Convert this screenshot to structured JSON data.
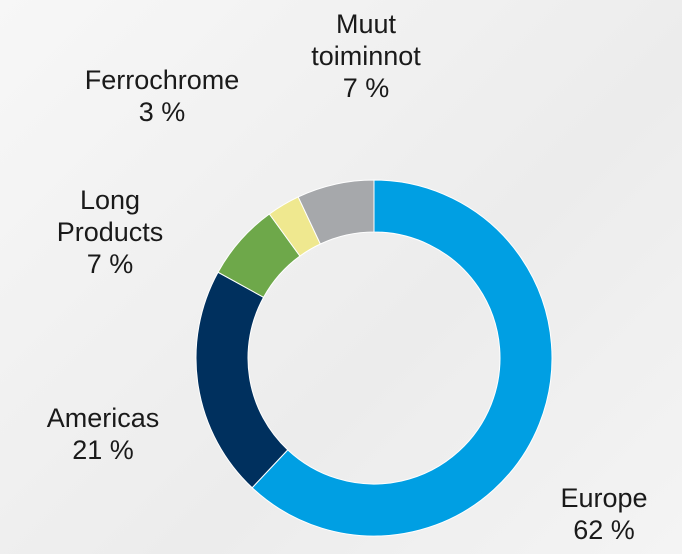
{
  "chart_data": {
    "type": "donut",
    "categories": [
      "Europe",
      "Americas",
      "Long Products",
      "Ferrochrome",
      "Muut toiminnot"
    ],
    "values": [
      62,
      21,
      7,
      3,
      7
    ],
    "value_labels": [
      "62 %",
      "21 %",
      "7 %",
      "3 %",
      "7 %"
    ],
    "colors": [
      "#009fe3",
      "#00305e",
      "#6ea84a",
      "#efe88f",
      "#a6a8ab"
    ]
  }
}
